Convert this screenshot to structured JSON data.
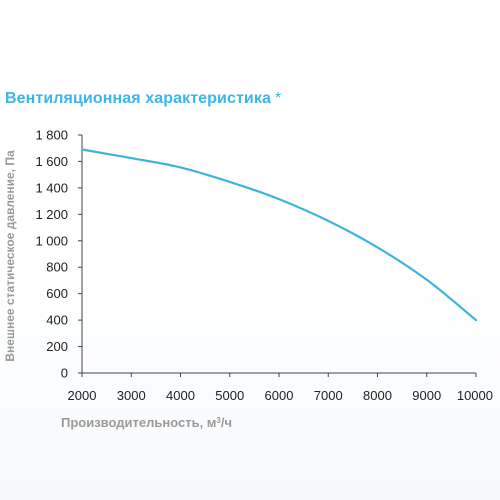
{
  "title": "Вентиляционная характеристика",
  "title_mark": "*",
  "colors": {
    "accent": "#39b7e6",
    "curve": "#3cb4de",
    "axis_text": "#222222",
    "axis_label": "#9a9a9a",
    "axis_line": "#444444"
  },
  "chart_data": {
    "type": "line",
    "title": "Вентиляционная характеристика *",
    "xlabel": "Производительность, м",
    "xlabel_sup": "3",
    "xlabel_tail": "/ч",
    "ylabel": "Внешнее статическое давление, Па",
    "xlim": [
      2000,
      10000
    ],
    "ylim": [
      0,
      1800
    ],
    "xticks": [
      2000,
      3000,
      4000,
      5000,
      6000,
      7000,
      8000,
      9000,
      10000
    ],
    "xtick_labels": [
      "2000",
      "3000",
      "4000",
      "5000",
      "6000",
      "7000",
      "8000",
      "9000",
      "10000"
    ],
    "yticks": [
      0,
      200,
      400,
      600,
      800,
      1000,
      1200,
      1400,
      1600,
      1800
    ],
    "ytick_labels": [
      "0",
      "200",
      "400",
      "600",
      "800",
      "1 000",
      "1 200",
      "1 400",
      "1 600",
      "1 800"
    ],
    "grid": false,
    "series": [
      {
        "x": [
          2000,
          3000,
          4000,
          5000,
          6000,
          7000,
          8000,
          9000,
          10000
        ],
        "y": [
          1690,
          1625,
          1555,
          1445,
          1315,
          1150,
          950,
          705,
          400
        ]
      }
    ]
  }
}
